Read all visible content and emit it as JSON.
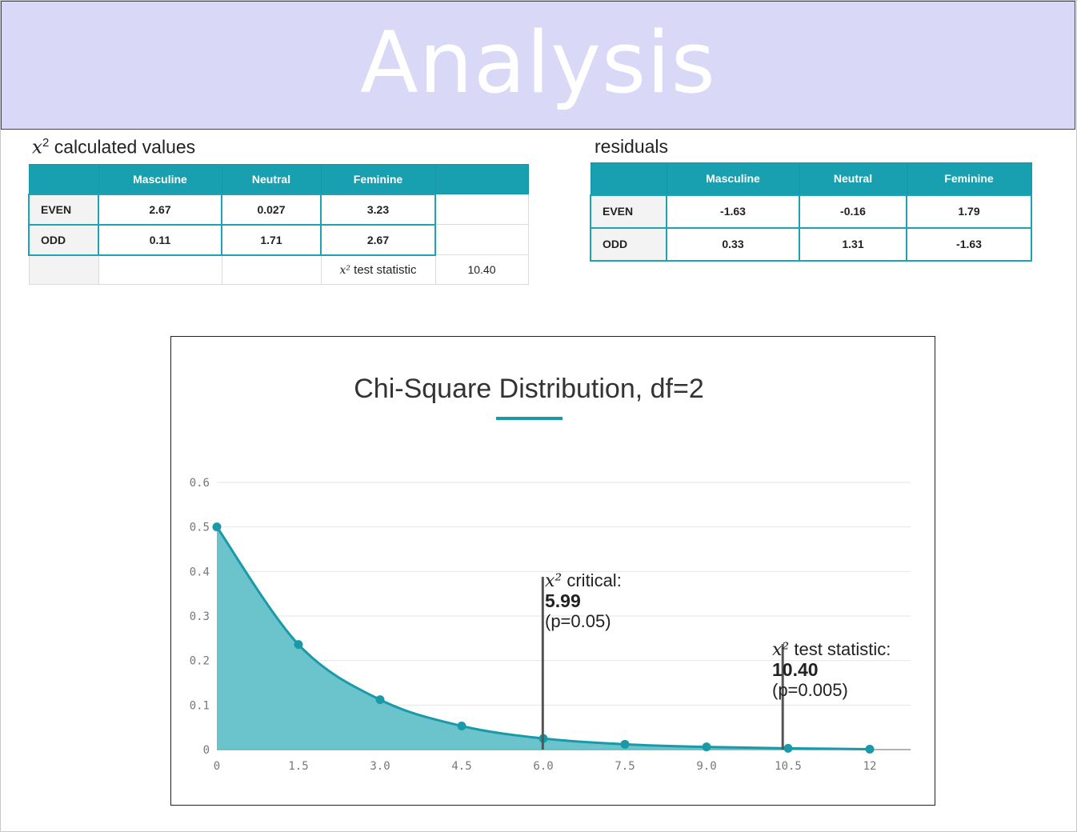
{
  "header": {
    "title": "Analysis"
  },
  "chi_table": {
    "caption_symbol": "x",
    "caption_power": "2",
    "caption_text": "calculated values",
    "columns": [
      "Masculine",
      "Neutral",
      "Feminine"
    ],
    "rows": [
      {
        "label": "EVEN",
        "values": [
          "2.67",
          "0.027",
          "3.23"
        ]
      },
      {
        "label": "ODD",
        "values": [
          "0.11",
          "1.71",
          "2.67"
        ]
      }
    ],
    "test_stat_symbol": "x²",
    "test_stat_label": "test statistic",
    "test_stat_value": "10.40"
  },
  "residuals_table": {
    "caption": "residuals",
    "columns": [
      "Masculine",
      "Neutral",
      "Feminine"
    ],
    "rows": [
      {
        "label": "EVEN",
        "values": [
          "-1.63",
          "-0.16",
          "1.79"
        ]
      },
      {
        "label": "ODD",
        "values": [
          "0.33",
          "1.31",
          "-1.63"
        ]
      }
    ]
  },
  "annotations": {
    "critical": {
      "symbol": "x²",
      "label": "critical:",
      "value": "5.99",
      "p": "(p=0.05)"
    },
    "test": {
      "symbol": "x²",
      "label": "test statistic:",
      "value": "10.40",
      "p": "(p=0.005)"
    }
  },
  "chart_data": {
    "type": "area",
    "title": "Chi-Square Distribution, df=2",
    "xlabel": "",
    "ylabel": "",
    "x": [
      0,
      1.5,
      3.0,
      4.5,
      6.0,
      7.5,
      9.0,
      10.5,
      12
    ],
    "y": [
      0.5,
      0.236,
      0.112,
      0.053,
      0.025,
      0.012,
      0.006,
      0.003,
      0.001
    ],
    "x_tick_labels": [
      "0",
      "1.5",
      "3.0",
      "4.5",
      "6.0",
      "7.5",
      "9.0",
      "10.5",
      "12"
    ],
    "y_ticks": [
      0,
      0.1,
      0.2,
      0.3,
      0.4,
      0.5,
      0.6
    ],
    "y_tick_labels": [
      "0",
      "0.1",
      "0.2",
      "0.3",
      "0.4",
      "0.5",
      "0.6"
    ],
    "xlim": [
      0,
      12.75
    ],
    "ylim": [
      0,
      0.6
    ],
    "grid": true,
    "vlines": [
      {
        "x": 5.99,
        "label": "critical"
      },
      {
        "x": 10.4,
        "label": "test statistic"
      }
    ],
    "colors": {
      "fill": "#5bbcc6",
      "line": "#1a9aa8",
      "title_underline": "#1a9aa8",
      "vline": "#555555"
    }
  }
}
